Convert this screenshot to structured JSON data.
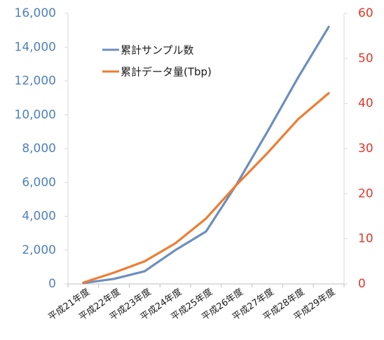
{
  "chart_data": {
    "type": "line",
    "title": "",
    "categories": [
      "平成21年度",
      "平成22年度",
      "平成23年度",
      "平成24年度",
      "平成25年度",
      "平成26年度",
      "平成27年度",
      "平成28年度",
      "平成29年度"
    ],
    "series": [
      {
        "name": "累計サンプル数",
        "axis": "left",
        "color": "#6c8ebf",
        "values": [
          50,
          300,
          750,
          2000,
          3100,
          5900,
          9000,
          12200,
          15200
        ]
      },
      {
        "name": "累計データ量(Tbp)",
        "axis": "right",
        "color": "#ed7d31",
        "values": [
          0.3,
          2.5,
          5,
          9,
          14.5,
          22,
          29,
          36.5,
          42.3
        ]
      }
    ],
    "y_left": {
      "ylim": [
        0,
        16000
      ],
      "ticks": [
        0,
        2000,
        4000,
        6000,
        8000,
        10000,
        12000,
        14000,
        16000
      ],
      "tick_labels": [
        "0",
        "2,000",
        "4,000",
        "6,000",
        "8,000",
        "10,000",
        "12,000",
        "14,000",
        "16,000"
      ],
      "color": "#4f81bd"
    },
    "y_right": {
      "ylim": [
        0,
        60
      ],
      "ticks": [
        0,
        10,
        20,
        30,
        40,
        50,
        60
      ],
      "tick_labels": [
        "0",
        "10",
        "20",
        "30",
        "40",
        "50",
        "60"
      ],
      "color": "#e2372a"
    },
    "grid": false,
    "legend_position": "top-left"
  }
}
